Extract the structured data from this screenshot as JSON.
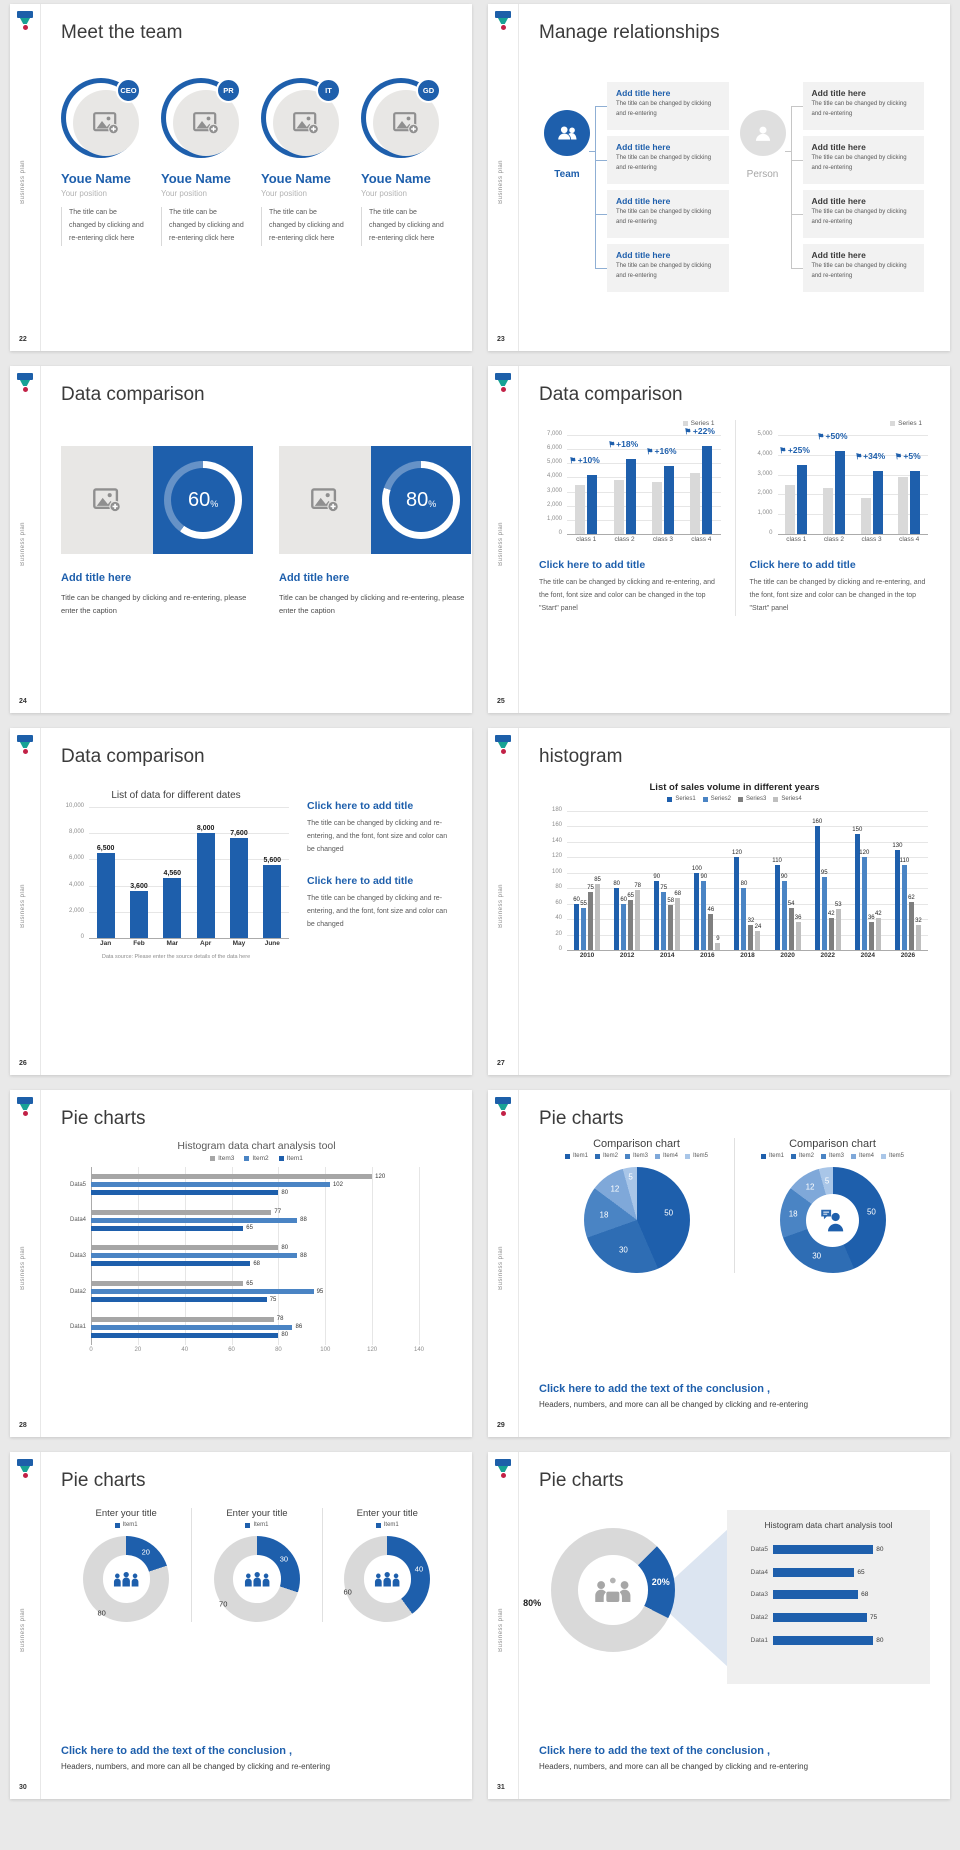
{
  "branding": {
    "sidebar_text": "Business plan",
    "logo_colors": {
      "top": "#1D5FA9",
      "mid": "#18A295",
      "dot": "#C22146"
    },
    "accent_blue": "#1E5FAC"
  },
  "slides": [
    {
      "id": 22,
      "page_num": "22",
      "title": "Meet the team",
      "members": [
        {
          "badge": "CEO",
          "name": "Youe Name",
          "position": "Your position",
          "desc": "The title can be changed by clicking and re-entering click here"
        },
        {
          "badge": "PR",
          "name": "Youe Name",
          "position": "Your position",
          "desc": "The title can be changed by clicking and re-entering click here"
        },
        {
          "badge": "IT",
          "name": "Youe Name",
          "position": "Your position",
          "desc": "The title can be changed by clicking and re-entering click here"
        },
        {
          "badge": "GD",
          "name": "Youe Name",
          "position": "Your position",
          "desc": "The title can be changed by clicking and re-entering click here"
        }
      ]
    },
    {
      "id": 23,
      "page_num": "23",
      "title": "Manage relationships",
      "groups": [
        {
          "label": "Team",
          "style": "blue",
          "icon": "team-icon",
          "boxes": [
            {
              "title": "Add title here",
              "body": "The title can be changed by clicking and re-entering"
            },
            {
              "title": "Add title here",
              "body": "The title can be changed by clicking and re-entering"
            },
            {
              "title": "Add title here",
              "body": "The title can be changed by clicking and re-entering"
            },
            {
              "title": "Add title here",
              "body": "The title can be changed by clicking and re-entering"
            }
          ]
        },
        {
          "label": "Person",
          "style": "gray",
          "icon": "person-icon",
          "boxes": [
            {
              "title": "Add title here",
              "body": "The title can be changed by clicking and re-entering"
            },
            {
              "title": "Add title here",
              "body": "The title can be changed by clicking and re-entering"
            },
            {
              "title": "Add title here",
              "body": "The title can be changed by clicking and re-entering"
            },
            {
              "title": "Add title here",
              "body": "The title can be changed by clicking and re-entering"
            }
          ]
        }
      ]
    },
    {
      "id": 24,
      "page_num": "24",
      "title": "Data comparison",
      "cards": [
        {
          "percent": "60",
          "percent_sym": "%",
          "title": "Add title here",
          "caption": "Title can be changed by clicking and re-entering, please enter the caption"
        },
        {
          "percent": "80",
          "percent_sym": "%",
          "title": "Add title here",
          "caption": "Title can be changed by clicking and re-entering, please enter the caption"
        }
      ]
    },
    {
      "id": 25,
      "page_num": "25",
      "title": "Data comparison",
      "blocks": [
        {
          "title": "Click here to add title",
          "body": "The title can be changed by clicking and re-entering, and the font, font size and color can be changed in the top \"Start\" panel"
        },
        {
          "title": "Click here to add title",
          "body": "The title can be changed by clicking and re-entering, and the font, font size and color can be changed in the top \"Start\" panel"
        }
      ]
    },
    {
      "id": 26,
      "page_num": "26",
      "title": "Data comparison",
      "blocks": [
        {
          "title": "Click here to add title",
          "body": "The title can be changed by clicking and re-entering, and the font, font size and color can be changed"
        },
        {
          "title": "Click here to add title",
          "body": "The title can be changed by clicking and re-entering, and the font, font size and color can be changed"
        }
      ]
    },
    {
      "id": 27,
      "page_num": "27",
      "title": "histogram"
    },
    {
      "id": 28,
      "page_num": "28",
      "title": "Pie charts"
    },
    {
      "id": 29,
      "page_num": "29",
      "title": "Pie charts",
      "conclusion": {
        "title": "Click here to add the text of the conclusion ,",
        "body": "Headers, numbers, and more can all be changed by clicking and re-entering"
      }
    },
    {
      "id": 30,
      "page_num": "30",
      "title": "Pie charts",
      "charts": [
        7,
        8,
        9
      ],
      "conclusion": {
        "title": "Click here to add the text of the conclusion ,",
        "body": "Headers, numbers, and more can all be changed by clicking and re-entering"
      }
    },
    {
      "id": 31,
      "page_num": "31",
      "title": "Pie charts",
      "conclusion": {
        "title": "Click here to add the text of the conclusion ,",
        "body": "Headers, numbers, and more can all be changed by clicking and re-entering"
      }
    }
  ],
  "chart_data": [
    {
      "name": "slide25-left",
      "type": "column",
      "legend": [
        {
          "label": "Series 1",
          "color": "#D9D9D9"
        }
      ],
      "categories": [
        "class 1",
        "class 2",
        "class 3",
        "class 4"
      ],
      "series": [
        {
          "name": "Series 1",
          "color": "#D9D9D9",
          "values": [
            3500,
            3800,
            3700,
            4300
          ]
        },
        {
          "name": "Highlight",
          "color": "#1E5FAC",
          "values": [
            4200,
            5300,
            4800,
            6200
          ]
        }
      ],
      "annotations": [
        "+10%",
        "+18%",
        "+16%",
        "+22%"
      ],
      "ymax": 7000,
      "yticks": [
        [
          0,
          "0"
        ],
        [
          1000,
          "1,000"
        ],
        [
          2000,
          "2,000"
        ],
        [
          3000,
          "3,000"
        ],
        [
          4000,
          "4,000"
        ],
        [
          5000,
          "5,000"
        ],
        [
          6000,
          "6,000"
        ],
        [
          7000,
          "7,000"
        ]
      ]
    },
    {
      "name": "slide25-right",
      "type": "column",
      "legend": [
        {
          "label": "Series 1",
          "color": "#D9D9D9"
        }
      ],
      "categories": [
        "class 1",
        "class 2",
        "class 3",
        "class 4"
      ],
      "series": [
        {
          "name": "Series 1",
          "color": "#D9D9D9",
          "values": [
            2500,
            2300,
            1800,
            2900
          ]
        },
        {
          "name": "Highlight",
          "color": "#1E5FAC",
          "values": [
            3500,
            4200,
            3200,
            3200
          ]
        }
      ],
      "annotations": [
        "+25%",
        "+50%",
        "+34%",
        "+5%"
      ],
      "ymax": 5000,
      "yticks": [
        [
          0,
          "0"
        ],
        [
          1000,
          "1,000"
        ],
        [
          2000,
          "2,000"
        ],
        [
          3000,
          "3,000"
        ],
        [
          4000,
          "4,000"
        ],
        [
          5000,
          "5,000"
        ]
      ]
    },
    {
      "name": "slide26",
      "type": "column",
      "title": "List of data for different dates",
      "categories": [
        "Jan",
        "Feb",
        "Mar",
        "Apr",
        "May",
        "June"
      ],
      "series": [
        {
          "name": "Data",
          "color": "#1E5FAC",
          "values": [
            6500,
            3600,
            4560,
            8000,
            7600,
            5600
          ],
          "labels": [
            "6,500",
            "3,600",
            "4,560",
            "8,000",
            "7,600",
            "5,600"
          ]
        }
      ],
      "ymax": 10000,
      "yticks": [
        [
          0,
          "0"
        ],
        [
          2000,
          "2,000"
        ],
        [
          4000,
          "4,000"
        ],
        [
          6000,
          "6,000"
        ],
        [
          8000,
          "8,000"
        ],
        [
          10000,
          "10,000"
        ]
      ],
      "footnote": "Data source: Please enter the source details of the data here"
    },
    {
      "name": "slide27",
      "type": "column",
      "title": "List of sales volume in different years",
      "legend": [
        {
          "label": "Series1",
          "color": "#1E5FAC"
        },
        {
          "label": "Series2",
          "color": "#4A84C4"
        },
        {
          "label": "Series3",
          "color": "#7F7F7F"
        },
        {
          "label": "Series4",
          "color": "#BFBFBF"
        }
      ],
      "categories": [
        "2010",
        "2012",
        "2014",
        "2016",
        "2018",
        "2020",
        "2022",
        "2024",
        "2026"
      ],
      "series": [
        {
          "name": "Series1",
          "color": "#1E5FAC",
          "values": [
            60,
            80,
            90,
            100,
            120,
            110,
            160,
            150,
            130
          ]
        },
        {
          "name": "Series2",
          "color": "#4A84C4",
          "values": [
            55,
            60,
            75,
            90,
            80,
            90,
            95,
            120,
            110
          ]
        },
        {
          "name": "Series3",
          "color": "#7F7F7F",
          "values": [
            75,
            65,
            58,
            46,
            32,
            54,
            42,
            36,
            62
          ]
        },
        {
          "name": "Series4",
          "color": "#BFBFBF",
          "values": [
            85,
            78,
            68,
            9,
            24,
            36,
            53,
            42,
            32
          ]
        }
      ],
      "show_labels": true,
      "ymax": 180,
      "yticks": [
        [
          0,
          "0"
        ],
        [
          20,
          "20"
        ],
        [
          40,
          "40"
        ],
        [
          60,
          "60"
        ],
        [
          80,
          "80"
        ],
        [
          100,
          "100"
        ],
        [
          120,
          "120"
        ],
        [
          140,
          "140"
        ],
        [
          160,
          "160"
        ],
        [
          180,
          "180"
        ]
      ]
    },
    {
      "name": "slide28",
      "type": "hbar",
      "title": "Histogram data chart analysis tool",
      "legend": [
        {
          "label": "Item3",
          "color": "#A6A6A6"
        },
        {
          "label": "Item2",
          "color": "#4A84C4"
        },
        {
          "label": "Item1",
          "color": "#1E5FAC"
        }
      ],
      "colors": [
        "#A6A6A6",
        "#4A84C4",
        "#1E5FAC"
      ],
      "rows": [
        {
          "label": "Data5",
          "values": [
            120,
            102,
            80
          ]
        },
        {
          "label": "Data4",
          "values": [
            77,
            88,
            65
          ]
        },
        {
          "label": "Data3",
          "values": [
            80,
            88,
            68
          ]
        },
        {
          "label": "Data2",
          "values": [
            65,
            95,
            75
          ]
        },
        {
          "label": "Data1",
          "values": [
            78,
            86,
            80
          ]
        }
      ],
      "xmax": 140,
      "xticks": [
        [
          0,
          "0"
        ],
        [
          20,
          "20"
        ],
        [
          40,
          "40"
        ],
        [
          60,
          "60"
        ],
        [
          80,
          "80"
        ],
        [
          100,
          "100"
        ],
        [
          120,
          "120"
        ],
        [
          140,
          "140"
        ]
      ]
    },
    {
      "name": "slide29-pie",
      "type": "pie",
      "title": "Comparison chart",
      "legend": [
        {
          "label": "Item1",
          "color": "#1E5FAC"
        },
        {
          "label": "Item2",
          "color": "#2E6DB4"
        },
        {
          "label": "Item3",
          "color": "#4A84C4"
        },
        {
          "label": "Item4",
          "color": "#7FA8D9"
        },
        {
          "label": "Item5",
          "color": "#A9C6E8"
        }
      ],
      "slices": [
        {
          "v": 50,
          "color": "#1E5FAC",
          "label": "50",
          "label_color": "#fff"
        },
        {
          "v": 30,
          "color": "#2E6DB4",
          "label": "30",
          "label_color": "#fff"
        },
        {
          "v": 18,
          "color": "#4A84C4",
          "label": "18",
          "label_color": "#fff"
        },
        {
          "v": 12,
          "color": "#7FA8D9",
          "label": "12",
          "label_color": "#fff",
          "label_r": 0.72
        },
        {
          "v": 5,
          "color": "#A9C6E8",
          "label": "5",
          "label_color": "#fff",
          "label_r": 0.82
        }
      ]
    },
    {
      "name": "slide29-donut",
      "type": "donut",
      "title": "Comparison chart",
      "hole": 0.5,
      "icon": "person-chat",
      "icon_color": "#1E5FAC",
      "legend": [
        {
          "label": "Item1",
          "color": "#1E5FAC"
        },
        {
          "label": "Item2",
          "color": "#2E6DB4"
        },
        {
          "label": "Item3",
          "color": "#4A84C4"
        },
        {
          "label": "Item4",
          "color": "#7FA8D9"
        },
        {
          "label": "Item5",
          "color": "#A9C6E8"
        }
      ],
      "slices": [
        {
          "v": 50,
          "color": "#1E5FAC",
          "label": "50",
          "label_color": "#fff"
        },
        {
          "v": 30,
          "color": "#2E6DB4",
          "label": "30",
          "label_color": "#fff"
        },
        {
          "v": 18,
          "color": "#4A84C4",
          "label": "18",
          "label_color": "#fff"
        },
        {
          "v": 12,
          "color": "#7FA8D9",
          "label": "12",
          "label_color": "#fff"
        },
        {
          "v": 5,
          "color": "#A9C6E8",
          "label": "5",
          "label_color": "#fff"
        }
      ]
    },
    {
      "name": "slide30-donut1",
      "type": "donut",
      "title": "Enter your title",
      "hole": 0.55,
      "icon": "people-group",
      "icon_color": "#1E5FAC",
      "legend": [
        {
          "label": "Item1",
          "color": "#1E5FAC"
        }
      ],
      "slices": [
        {
          "v": 20,
          "color": "#1E5FAC",
          "label": "20",
          "label_color": "#fff"
        },
        {
          "v": 80,
          "color": "#D9D9D9",
          "label": "80",
          "label_color": "#333",
          "label_r": 0.97
        }
      ]
    },
    {
      "name": "slide30-donut2",
      "type": "donut",
      "title": "Enter your title",
      "hole": 0.55,
      "icon": "people-group",
      "icon_color": "#1E5FAC",
      "legend": [
        {
          "label": "Item1",
          "color": "#1E5FAC"
        }
      ],
      "slices": [
        {
          "v": 30,
          "color": "#1E5FAC",
          "label": "30",
          "label_color": "#fff"
        },
        {
          "v": 70,
          "color": "#D9D9D9",
          "label": "70",
          "label_color": "#333",
          "label_r": 0.97
        }
      ]
    },
    {
      "name": "slide30-donut3",
      "type": "donut",
      "title": "Enter your title",
      "hole": 0.55,
      "icon": "people-group",
      "icon_color": "#1E5FAC",
      "legend": [
        {
          "label": "Item1",
          "color": "#1E5FAC"
        }
      ],
      "slices": [
        {
          "v": 40,
          "color": "#1E5FAC",
          "label": "40",
          "label_color": "#fff"
        },
        {
          "v": 60,
          "color": "#D9D9D9",
          "label": "60",
          "label_color": "#333",
          "label_r": 0.97
        }
      ]
    },
    {
      "name": "slide31-donut",
      "type": "donut",
      "hole": 0.56,
      "from": 45,
      "icon": "meeting",
      "icon_color": "#A6A6A6",
      "slices": [
        {
          "v": 20,
          "color": "#1E5FAC",
          "label": "20%",
          "label_color": "#fff",
          "label_r": 0.78,
          "bold": true
        },
        {
          "v": 80,
          "color": "#D9D9D9",
          "label": "80%",
          "label_color": "#1a1a1a",
          "label_r": 1.32,
          "bold": true
        }
      ]
    },
    {
      "name": "slide31-bars",
      "type": "hbar",
      "bare": true,
      "title": "Histogram data chart analysis tool",
      "colors": [
        "#1E5FAC"
      ],
      "rows": [
        {
          "label": "Data5",
          "values": [
            80
          ]
        },
        {
          "label": "Data4",
          "values": [
            65
          ]
        },
        {
          "label": "Data3",
          "values": [
            68
          ]
        },
        {
          "label": "Data2",
          "values": [
            75
          ]
        },
        {
          "label": "Data1",
          "values": [
            80
          ]
        }
      ],
      "xmax": 95
    }
  ]
}
